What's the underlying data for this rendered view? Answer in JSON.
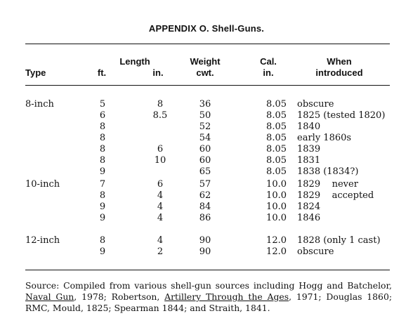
{
  "title": "APPENDIX O. Shell-Guns.",
  "header": {
    "type": "Type",
    "length": "Length",
    "ft": "ft.",
    "in": "in.",
    "weight": "Weight",
    "cwt": "cwt.",
    "cal": "Cal.",
    "cal_unit": "in.",
    "when": "When",
    "introduced": "introduced"
  },
  "rows": [
    {
      "type": "8-inch",
      "ft": "5",
      "in": "8",
      "weight": "36",
      "cal": "8.05",
      "when": "obscure"
    },
    {
      "type": "",
      "ft": "6",
      "in": "8.5",
      "weight": "50",
      "cal": "8.05",
      "when": "1825 (tested 1820)"
    },
    {
      "type": "",
      "ft": "8",
      "in": "",
      "weight": "52",
      "cal": "8.05",
      "when": "1840"
    },
    {
      "type": "",
      "ft": "8",
      "in": "",
      "weight": "54",
      "cal": "8.05",
      "when": "early 1860s"
    },
    {
      "type": "",
      "ft": "8",
      "in": "6",
      "weight": "60",
      "cal": "8.05",
      "when": "1839"
    },
    {
      "type": "",
      "ft": "8",
      "in": "10",
      "weight": "60",
      "cal": "8.05",
      "when": "1831"
    },
    {
      "type": "",
      "ft": "9",
      "in": "",
      "weight": "65",
      "cal": "8.05",
      "when": "1838 (1834?)"
    },
    {
      "type": "10-inch",
      "ft": "7",
      "in": "6",
      "weight": "57",
      "cal": "10.0",
      "when": "1829    never"
    },
    {
      "type": "",
      "ft": "8",
      "in": "4",
      "weight": "62",
      "cal": "10.0",
      "when": "1829    accepted"
    },
    {
      "type": "",
      "ft": "9",
      "in": "4",
      "weight": "84",
      "cal": "10.0",
      "when": "1824"
    },
    {
      "type": "",
      "ft": "9",
      "in": "4",
      "weight": "86",
      "cal": "10.0",
      "when": "1846"
    },
    {
      "type": "12-inch",
      "ft": "8",
      "in": "4",
      "weight": "90",
      "cal": "12.0",
      "when": "1828 (only 1 cast)"
    },
    {
      "type": "",
      "ft": "9",
      "in": "2",
      "weight": "90",
      "cal": "12.0",
      "when": "obscure"
    }
  ],
  "source": {
    "s1": "Source: Compiled from various shell-gun sources including Hogg and Batchelor, ",
    "s2": "Naval Gun",
    "s3": ", 1978; Robertson, ",
    "s4": "Artillery Through the Ages",
    "s5": ", 1971; Douglas 1860; RMC, Mould, 1825; Spearman 1844; and Straith, 1841."
  }
}
